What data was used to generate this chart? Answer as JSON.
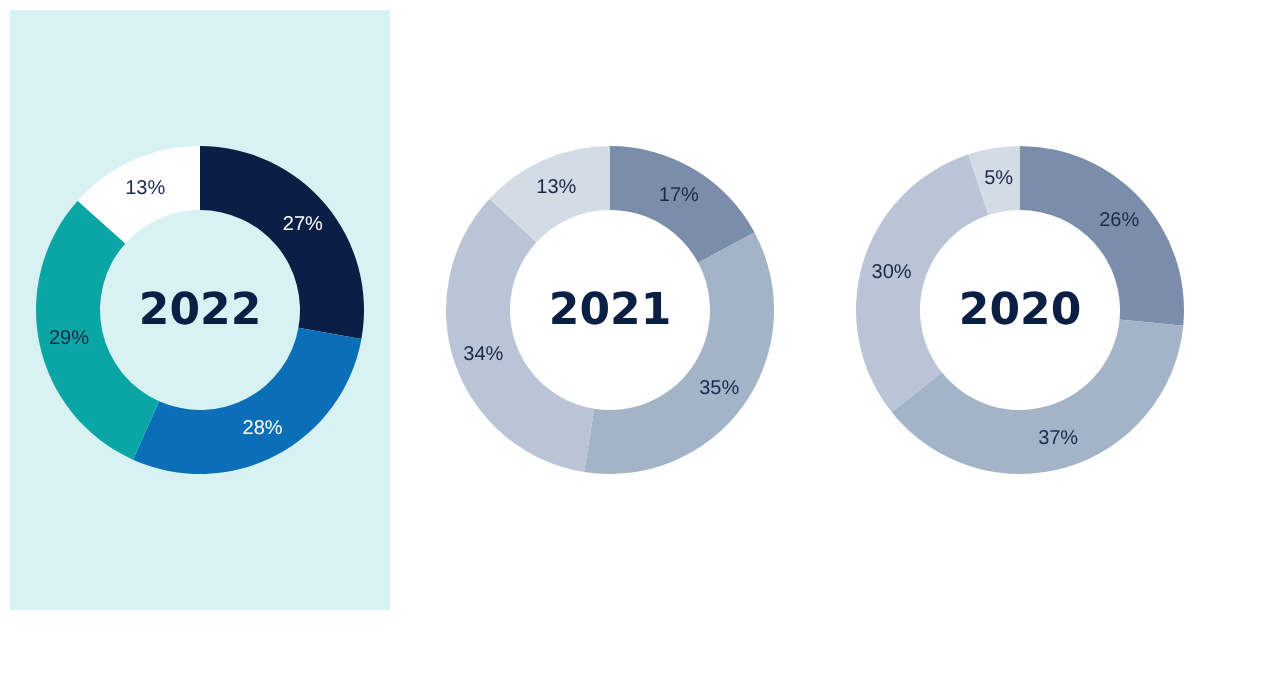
{
  "chart_data": [
    {
      "type": "donut",
      "title": "2022",
      "categories": [
        null,
        null,
        null,
        null
      ],
      "values": [
        27,
        28,
        29,
        13
      ],
      "value_labels": [
        "27%",
        "28%",
        "29%",
        "13%"
      ],
      "colors": [
        "#0b1f45",
        "#0b6fb8",
        "#0aa6a6",
        "#ffffff"
      ]
    },
    {
      "type": "donut",
      "title": "2021",
      "categories": [
        null,
        null,
        null,
        null
      ],
      "values": [
        17,
        35,
        34,
        13
      ],
      "value_labels": [
        "17%",
        "35%",
        "34%",
        "13%"
      ],
      "colors": [
        "#7a8eab",
        "#a3b3c8",
        "#b9c5d6",
        "#d3dbe5"
      ]
    },
    {
      "type": "donut",
      "title": "2020",
      "categories": [
        null,
        null,
        null,
        null
      ],
      "values": [
        26,
        37,
        30,
        5
      ],
      "value_labels": [
        "26%",
        "37%",
        "30%",
        "5%"
      ],
      "colors": [
        "#7a8eab",
        "#a3b3c8",
        "#b9c5d6",
        "#d3dbe5"
      ]
    }
  ]
}
